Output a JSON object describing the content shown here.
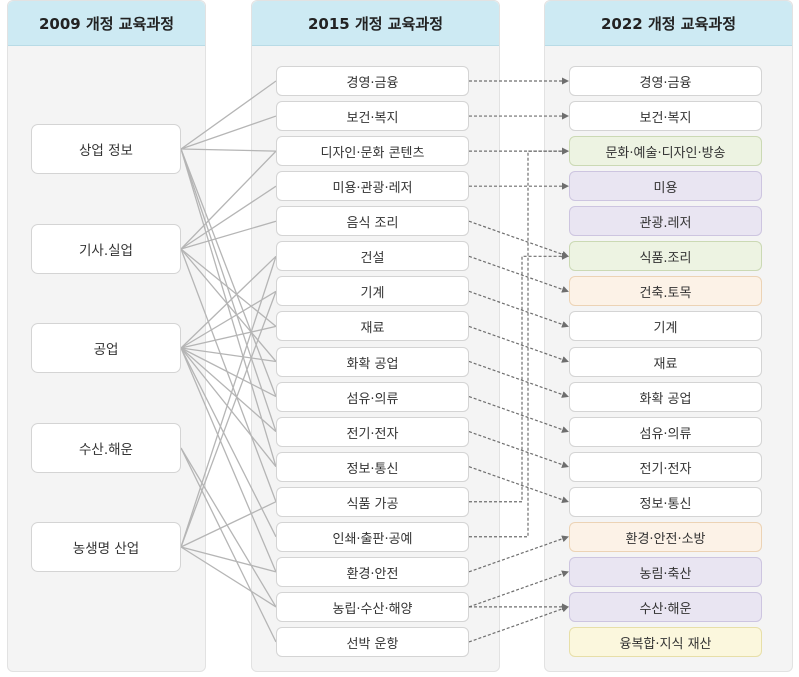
{
  "columns": [
    {
      "title": "2009 개정 교육과정"
    },
    {
      "title": "2015 개정 교육과정"
    },
    {
      "title": "2022 개정 교육과정"
    }
  ],
  "curriculum_2009": [
    "상업 정보",
    "기사.실업",
    "공업",
    "수산.해운",
    "농생명 산업"
  ],
  "curriculum_2015": [
    "경영·금융",
    "보건·복지",
    "디자인·문화 콘텐츠",
    "미용·관광·레저",
    "음식 조리",
    "건설",
    "기계",
    "재료",
    "화확 공업",
    "섬유·의류",
    "전기·전자",
    "정보·통신",
    "식품 가공",
    "인쇄·출판·공예",
    "환경·안전",
    "농립·수산·해양",
    "선박 운항"
  ],
  "curriculum_2022": [
    {
      "label": "경영·금융",
      "tint": "white"
    },
    {
      "label": "보건·복지",
      "tint": "white"
    },
    {
      "label": "문화·예술·디자인·방송",
      "tint": "green"
    },
    {
      "label": "미용",
      "tint": "purple"
    },
    {
      "label": "관광.레저",
      "tint": "purple"
    },
    {
      "label": "식품.조리",
      "tint": "green"
    },
    {
      "label": "건축.토목",
      "tint": "orange"
    },
    {
      "label": "기계",
      "tint": "white"
    },
    {
      "label": "재료",
      "tint": "white"
    },
    {
      "label": "화확 공업",
      "tint": "white"
    },
    {
      "label": "섬유·의류",
      "tint": "white"
    },
    {
      "label": "전기·전자",
      "tint": "white"
    },
    {
      "label": "정보·통신",
      "tint": "white"
    },
    {
      "label": "환경·안전·소방",
      "tint": "orange"
    },
    {
      "label": "농림·축산",
      "tint": "purple"
    },
    {
      "label": "수산·해운",
      "tint": "purple"
    },
    {
      "label": "융복합·지식 재산",
      "tint": "yellow"
    }
  ],
  "links_2009_to_2015": [
    [
      0,
      0
    ],
    [
      0,
      1
    ],
    [
      0,
      2
    ],
    [
      0,
      9
    ],
    [
      0,
      10
    ],
    [
      0,
      11
    ],
    [
      1,
      3
    ],
    [
      1,
      4
    ],
    [
      1,
      2
    ],
    [
      1,
      7
    ],
    [
      1,
      8
    ],
    [
      1,
      12
    ],
    [
      2,
      5
    ],
    [
      2,
      6
    ],
    [
      2,
      7
    ],
    [
      2,
      8
    ],
    [
      2,
      9
    ],
    [
      2,
      10
    ],
    [
      2,
      11
    ],
    [
      2,
      13
    ],
    [
      2,
      14
    ],
    [
      3,
      15
    ],
    [
      3,
      16
    ],
    [
      4,
      12
    ],
    [
      4,
      14
    ],
    [
      4,
      15
    ],
    [
      4,
      5
    ],
    [
      4,
      6
    ]
  ],
  "links_2015_to_2022": [
    [
      0,
      0
    ],
    [
      1,
      1
    ],
    [
      2,
      2
    ],
    [
      3,
      3
    ],
    [
      4,
      5
    ],
    [
      5,
      6
    ],
    [
      6,
      7
    ],
    [
      7,
      8
    ],
    [
      8,
      9
    ],
    [
      9,
      10
    ],
    [
      10,
      11
    ],
    [
      11,
      12
    ],
    [
      12,
      5
    ],
    [
      13,
      2
    ],
    [
      14,
      13
    ],
    [
      15,
      14
    ],
    [
      15,
      15
    ],
    [
      16,
      15
    ]
  ],
  "colors": {
    "header_bg": "#cdeaf3",
    "panel_bg": "#f4f4f4",
    "line": "#b5b5b5",
    "arrow": "#6e6e6e",
    "tint_green": "#edf3e2",
    "tint_purple": "#e9e5f2",
    "tint_orange": "#fcf2e7",
    "tint_yellow": "#fbf7dd"
  }
}
